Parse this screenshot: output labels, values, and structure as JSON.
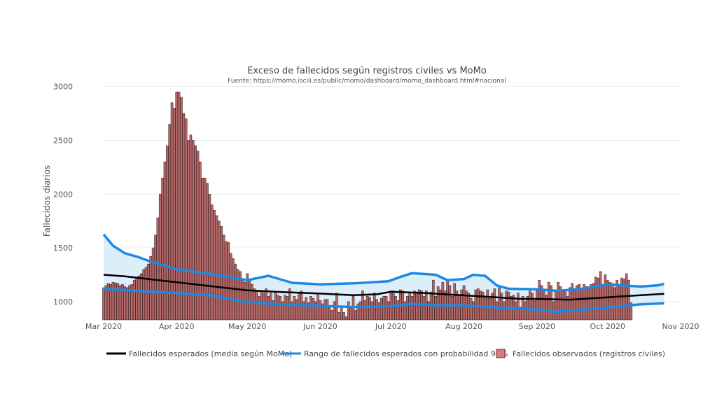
{
  "chart_data": {
    "type": "bar",
    "title": "Exceso de fallecidos según registros civiles vs MoMo",
    "subtitle": "Fuente: https://momo.isciii.es/public/momo/dashboard/momo_dashboard.html#nacional",
    "xlabel": "",
    "ylabel": "Fallecidos diarios",
    "ylim": [
      830,
      3050
    ],
    "yticks": [
      1000,
      1500,
      2000,
      2500,
      3000
    ],
    "xlim": [
      "2020-03-01",
      "2020-11-01"
    ],
    "xticks": [
      {
        "date": "2020-03-01",
        "label": "Mar 2020"
      },
      {
        "date": "2020-04-01",
        "label": "Apr 2020"
      },
      {
        "date": "2020-05-01",
        "label": "May 2020"
      },
      {
        "date": "2020-06-01",
        "label": "Jun 2020"
      },
      {
        "date": "2020-07-01",
        "label": "Jul 2020"
      },
      {
        "date": "2020-08-01",
        "label": "Aug 2020"
      },
      {
        "date": "2020-09-01",
        "label": "Sep 2020"
      },
      {
        "date": "2020-10-01",
        "label": "Oct 2020"
      },
      {
        "date": "2020-11-01",
        "label": "Nov 2020"
      }
    ],
    "grid": true,
    "legend_position": "bottom",
    "colors": {
      "bar_fill": "#b56a6a",
      "bar_stroke": "#3a1a1a",
      "expected_line": "#000000",
      "range_line": "#1e88e5",
      "range_fill": "#d6ebf8",
      "legend_swatch": "#e07a7a",
      "grid": "#eeeeee"
    },
    "series": [
      {
        "name": "Fallecidos esperados (media según MoMo)",
        "kind": "line",
        "points": [
          [
            "2020-03-01",
            1250
          ],
          [
            "2020-03-10",
            1235
          ],
          [
            "2020-03-20",
            1210
          ],
          [
            "2020-04-01",
            1180
          ],
          [
            "2020-04-15",
            1145
          ],
          [
            "2020-05-01",
            1105
          ],
          [
            "2020-05-15",
            1090
          ],
          [
            "2020-06-01",
            1075
          ],
          [
            "2020-06-15",
            1060
          ],
          [
            "2020-06-25",
            1068
          ],
          [
            "2020-07-01",
            1092
          ],
          [
            "2020-07-15",
            1080
          ],
          [
            "2020-08-01",
            1058
          ],
          [
            "2020-08-15",
            1040
          ],
          [
            "2020-08-25",
            1025
          ],
          [
            "2020-09-01",
            1025
          ],
          [
            "2020-09-15",
            1018
          ],
          [
            "2020-10-01",
            1040
          ],
          [
            "2020-10-15",
            1060
          ],
          [
            "2020-10-25",
            1072
          ]
        ]
      },
      {
        "name": "Rango de fallecidos esperados con probabilidad 99%",
        "kind": "band",
        "upper": [
          [
            "2020-03-01",
            1625
          ],
          [
            "2020-03-05",
            1520
          ],
          [
            "2020-03-10",
            1450
          ],
          [
            "2020-03-15",
            1420
          ],
          [
            "2020-03-20",
            1380
          ],
          [
            "2020-04-01",
            1300
          ],
          [
            "2020-04-15",
            1260
          ],
          [
            "2020-05-01",
            1200
          ],
          [
            "2020-05-10",
            1240
          ],
          [
            "2020-05-20",
            1175
          ],
          [
            "2020-06-01",
            1160
          ],
          [
            "2020-06-15",
            1170
          ],
          [
            "2020-06-30",
            1190
          ],
          [
            "2020-07-05",
            1230
          ],
          [
            "2020-07-10",
            1265
          ],
          [
            "2020-07-20",
            1250
          ],
          [
            "2020-07-25",
            1200
          ],
          [
            "2020-08-01",
            1210
          ],
          [
            "2020-08-05",
            1250
          ],
          [
            "2020-08-10",
            1240
          ],
          [
            "2020-08-15",
            1150
          ],
          [
            "2020-08-20",
            1120
          ],
          [
            "2020-09-01",
            1115
          ],
          [
            "2020-09-10",
            1100
          ],
          [
            "2020-09-20",
            1120
          ],
          [
            "2020-10-01",
            1160
          ],
          [
            "2020-10-15",
            1140
          ],
          [
            "2020-10-22",
            1150
          ],
          [
            "2020-10-25",
            1165
          ]
        ],
        "lower": [
          [
            "2020-03-01",
            1120
          ],
          [
            "2020-03-15",
            1100
          ],
          [
            "2020-04-01",
            1080
          ],
          [
            "2020-04-15",
            1060
          ],
          [
            "2020-05-01",
            995
          ],
          [
            "2020-05-15",
            975
          ],
          [
            "2020-06-01",
            960
          ],
          [
            "2020-06-15",
            950
          ],
          [
            "2020-06-30",
            955
          ],
          [
            "2020-07-10",
            980
          ],
          [
            "2020-07-20",
            965
          ],
          [
            "2020-08-01",
            965
          ],
          [
            "2020-08-15",
            945
          ],
          [
            "2020-09-01",
            925
          ],
          [
            "2020-09-10",
            905
          ],
          [
            "2020-09-20",
            925
          ],
          [
            "2020-10-01",
            945
          ],
          [
            "2020-10-15",
            975
          ],
          [
            "2020-10-25",
            985
          ]
        ]
      },
      {
        "name": "Fallecidos observados (registros civiles)",
        "kind": "bar",
        "start": "2020-03-01",
        "values": [
          1130,
          1150,
          1170,
          1160,
          1180,
          1175,
          1170,
          1150,
          1160,
          1140,
          1130,
          1150,
          1160,
          1200,
          1220,
          1240,
          1260,
          1300,
          1320,
          1350,
          1420,
          1500,
          1620,
          1780,
          2000,
          2150,
          2300,
          2450,
          2650,
          2850,
          2800,
          2950,
          2950,
          2900,
          2750,
          2700,
          2500,
          2550,
          2500,
          2450,
          2400,
          2300,
          2150,
          2150,
          2100,
          2000,
          1900,
          1850,
          1800,
          1750,
          1700,
          1620,
          1560,
          1550,
          1450,
          1400,
          1350,
          1300,
          1280,
          1200,
          1180,
          1260,
          1200,
          1160,
          1120,
          1100,
          1050,
          1100,
          1080,
          1120,
          1050,
          1080,
          1010,
          1090,
          1060,
          1050,
          1000,
          1060,
          1050,
          1120,
          1000,
          1050,
          1020,
          1080,
          1100,
          1000,
          1040,
          990,
          1050,
          1030,
          1000,
          1080,
          1010,
          980,
          1020,
          1020,
          960,
          920,
          1000,
          1080,
          900,
          950,
          900,
          860,
          1000,
          950,
          1050,
          920,
          980,
          1000,
          1100,
          1010,
          1050,
          1040,
          1000,
          1080,
          1020,
          990,
          1030,
          1050,
          1050,
          1000,
          1100,
          1100,
          1050,
          1010,
          1110,
          1100,
          1000,
          1050,
          1090,
          1050,
          1100,
          1090,
          1110,
          1100,
          1050,
          1100,
          1000,
          1090,
          1200,
          1050,
          1140,
          1110,
          1180,
          1100,
          1200,
          1150,
          1050,
          1170,
          1100,
          1060,
          1110,
          1150,
          1100,
          1080,
          1030,
          1000,
          1110,
          1120,
          1100,
          1090,
          1040,
          1110,
          1030,
          1080,
          1120,
          1000,
          1130,
          1080,
          1000,
          1100,
          1090,
          1050,
          1060,
          1000,
          1080,
          950,
          1050,
          1000,
          1050,
          1100,
          1080,
          1010,
          1100,
          1200,
          1150,
          1100,
          1060,
          1180,
          1150,
          1000,
          1100,
          1180,
          1140,
          1100,
          1110,
          1050,
          1130,
          1170,
          1100,
          1150,
          1160,
          1110,
          1160,
          1140,
          1130,
          1160,
          1170,
          1230,
          1220,
          1280,
          1150,
          1250,
          1200,
          1180,
          1170,
          1130,
          1200,
          1160,
          1220,
          1210,
          1260,
          1200,
          990
        ]
      }
    ]
  }
}
